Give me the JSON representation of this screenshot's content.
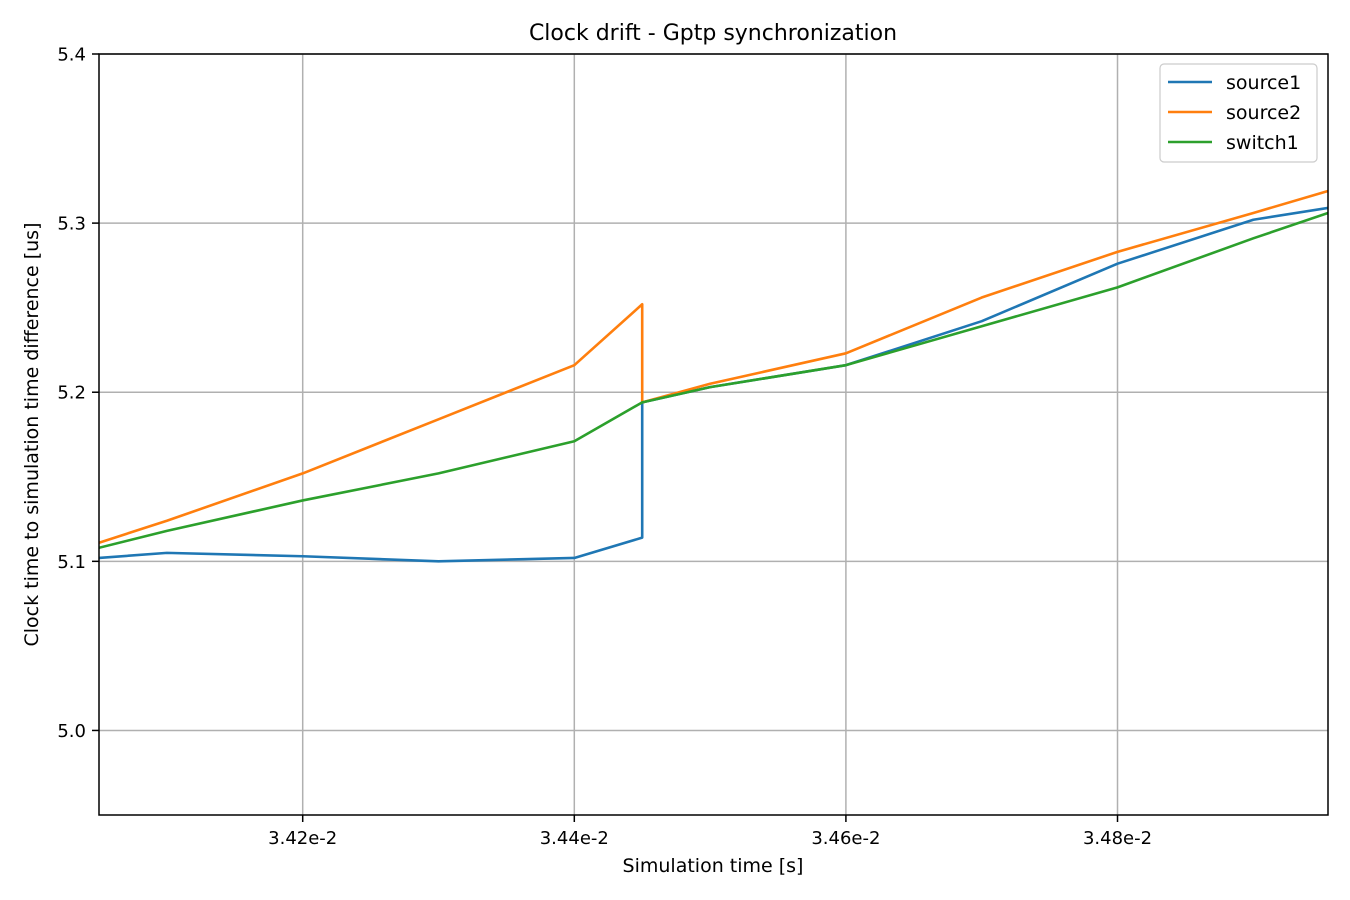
{
  "chart_data": {
    "type": "line",
    "title": "Clock drift - Gptp synchronization",
    "xlabel": "Simulation time [s]",
    "ylabel": "Clock time to simulation time difference [us]",
    "xlim": [
      0.03405,
      0.034955
    ],
    "ylim": [
      4.95,
      5.4
    ],
    "x_ticks": [
      0.0342,
      0.0344,
      0.0346,
      0.0348
    ],
    "x_tick_labels": [
      "3.42e-2",
      "3.44e-2",
      "3.46e-2",
      "3.48e-2"
    ],
    "y_ticks": [
      5.0,
      5.1,
      5.2,
      5.3,
      5.4
    ],
    "y_tick_labels": [
      "5.0",
      "5.1",
      "5.2",
      "5.3",
      "5.4"
    ],
    "grid": true,
    "legend_position": "top-right",
    "series": [
      {
        "name": "source1",
        "color": "#1f77b4",
        "x": [
          0.03405,
          0.0341,
          0.0342,
          0.0343,
          0.0344,
          0.03445,
          0.03445,
          0.0345,
          0.0346,
          0.0347,
          0.0348,
          0.0349,
          0.034955
        ],
        "y": [
          5.102,
          5.105,
          5.103,
          5.1,
          5.102,
          5.114,
          5.194,
          5.203,
          5.216,
          5.242,
          5.276,
          5.302,
          5.309
        ]
      },
      {
        "name": "source2",
        "color": "#ff7f0e",
        "x": [
          0.03405,
          0.0341,
          0.0342,
          0.0343,
          0.0344,
          0.03445,
          0.03445,
          0.0345,
          0.0346,
          0.0347,
          0.0348,
          0.0349,
          0.034955
        ],
        "y": [
          5.111,
          5.124,
          5.152,
          5.184,
          5.216,
          5.252,
          5.194,
          5.205,
          5.223,
          5.256,
          5.283,
          5.306,
          5.319
        ]
      },
      {
        "name": "switch1",
        "color": "#2ca02c",
        "x": [
          0.03405,
          0.0341,
          0.0342,
          0.0343,
          0.0344,
          0.03445,
          0.0345,
          0.0346,
          0.0347,
          0.0348,
          0.0349,
          0.034955
        ],
        "y": [
          5.108,
          5.118,
          5.136,
          5.152,
          5.171,
          5.194,
          5.203,
          5.216,
          5.239,
          5.262,
          5.291,
          5.306
        ]
      }
    ]
  }
}
